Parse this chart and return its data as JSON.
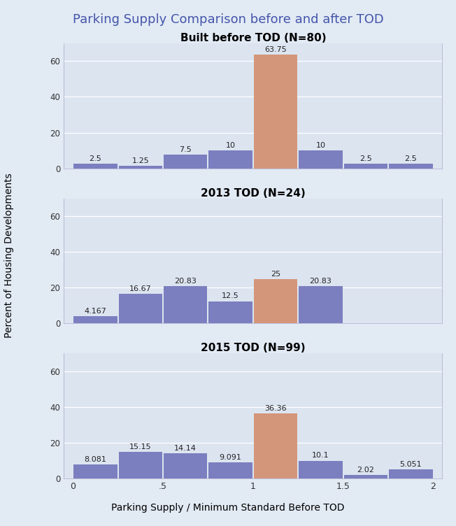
{
  "title": "Parking Supply Comparison before and after TOD",
  "xlabel": "Parking Supply / Minimum Standard Before TOD",
  "ylabel": "Percent of Housing Developments",
  "panels": [
    {
      "title": "Built before TOD (N=80)",
      "bin_starts": [
        0.0,
        0.25,
        0.5,
        0.75,
        1.0,
        1.25,
        1.5,
        1.75
      ],
      "heights": [
        2.5,
        1.25,
        7.5,
        10.0,
        63.75,
        10.0,
        2.5,
        2.5
      ],
      "labels": [
        "2.5",
        "1.25",
        "7.5",
        "10",
        "63.75",
        "10",
        "2.5",
        "2.5"
      ],
      "orange_bin": 4,
      "ylim": [
        0,
        70
      ],
      "yticks": [
        0,
        20,
        40,
        60
      ]
    },
    {
      "title": "2013 TOD (N=24)",
      "bin_starts": [
        0.0,
        0.25,
        0.5,
        0.75,
        1.0,
        1.25
      ],
      "heights": [
        4.167,
        16.67,
        20.83,
        12.5,
        25.0,
        20.83
      ],
      "labels": [
        "4.167",
        "16.67",
        "20.83",
        "12.5",
        "25",
        "20.83"
      ],
      "orange_bin": 4,
      "ylim": [
        0,
        70
      ],
      "yticks": [
        0,
        20,
        40,
        60
      ]
    },
    {
      "title": "2015 TOD (N=99)",
      "bin_starts": [
        0.0,
        0.25,
        0.5,
        0.75,
        1.0,
        1.25,
        1.5,
        1.75
      ],
      "heights": [
        8.081,
        15.15,
        14.14,
        9.091,
        36.36,
        10.1,
        2.02,
        5.051
      ],
      "labels": [
        "8.081",
        "15.15",
        "14.14",
        "9.091",
        "36.36",
        "10.1",
        "2.02",
        "5.051"
      ],
      "orange_bin": 4,
      "ylim": [
        0,
        70
      ],
      "yticks": [
        0,
        20,
        40,
        60
      ]
    }
  ],
  "bar_color_blue": "#7B7FBF",
  "bar_color_orange": "#D4967A",
  "panel_bg_color": "#DCE4F0",
  "panel_title_bg_color": "#C8D4E8",
  "fig_bg_color": "#E2EAF4",
  "title_color": "#4455AA",
  "title_fontsize": 13,
  "panel_title_fontsize": 11,
  "label_fontsize": 8,
  "axis_label_fontsize": 10,
  "xlim": [
    -0.05,
    2.05
  ],
  "xticks": [
    0,
    0.5,
    1.0,
    1.5,
    2.0
  ],
  "xticklabels": [
    "0",
    ".5",
    "1",
    "1.5",
    "2"
  ],
  "bin_width": 0.25
}
